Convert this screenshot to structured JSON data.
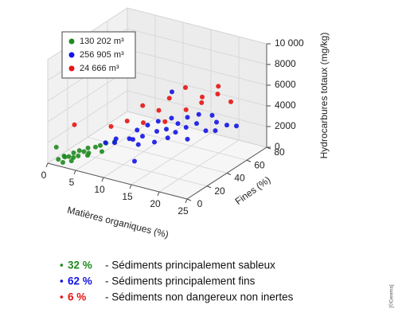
{
  "chart_data": {
    "type": "scatter3d",
    "xlabel": "Matières organiques (%)",
    "ylabel": "Fines (%)",
    "zlabel": "Hydrocarbures totaux (mg/kg)",
    "xlim": [
      0,
      25
    ],
    "xticks": [
      0,
      5,
      10,
      15,
      20,
      25
    ],
    "ylim": [
      0,
      80
    ],
    "yticks": [
      0,
      20,
      40,
      60,
      80
    ],
    "zlim": [
      0,
      10000
    ],
    "zticks": [
      0,
      2000,
      4000,
      6000,
      8000,
      {
        "value": 10000,
        "label": "10 000"
      }
    ],
    "grid": true,
    "series": [
      {
        "name": "130 202 m³",
        "color": "#1f8a1f",
        "x": [
          1,
          1.5,
          2,
          2,
          2.5,
          3,
          3,
          3.5,
          4,
          4,
          4.5,
          5,
          5,
          5.5,
          6,
          6.5,
          7,
          2,
          3,
          1
        ],
        "y": [
          5,
          8,
          10,
          6,
          12,
          9,
          15,
          11,
          14,
          18,
          16,
          20,
          12,
          22,
          25,
          18,
          28,
          4,
          7,
          3
        ],
        "z": [
          200,
          400,
          300,
          500,
          600,
          400,
          700,
          500,
          800,
          900,
          600,
          1000,
          700,
          1100,
          1200,
          900,
          1300,
          100,
          200,
          1500
        ]
      },
      {
        "name": "256 905 m³",
        "color": "#1414e6",
        "x": [
          5,
          6,
          7,
          7.5,
          8,
          8.5,
          9,
          9.5,
          10,
          10,
          11,
          11.5,
          12,
          12,
          13,
          13.5,
          14,
          14,
          15,
          15.5,
          16,
          16.5,
          17,
          18,
          18.5,
          19,
          20,
          21,
          8,
          12
        ],
        "y": [
          30,
          35,
          28,
          40,
          45,
          38,
          50,
          42,
          55,
          35,
          48,
          60,
          52,
          40,
          58,
          45,
          62,
          50,
          55,
          65,
          60,
          48,
          70,
          58,
          66,
          62,
          68,
          72,
          80,
          20
        ],
        "z": [
          800,
          1000,
          1200,
          900,
          1500,
          1100,
          1800,
          1300,
          2000,
          1000,
          1600,
          2200,
          1700,
          1200,
          2000,
          1500,
          2500,
          1800,
          2100,
          2800,
          2300,
          1600,
          2600,
          2000,
          2400,
          1900,
          2200,
          2000,
          3000,
          600
        ]
      },
      {
        "name": "24 666 m³",
        "color": "#e61414",
        "x": [
          3,
          6,
          8,
          9,
          10,
          11,
          12,
          13,
          14,
          15,
          16,
          17,
          18,
          19,
          20
        ],
        "y": [
          10,
          30,
          35,
          45,
          40,
          50,
          55,
          45,
          60,
          55,
          65,
          60,
          70,
          65,
          72
        ],
        "z": [
          3500,
          2500,
          3000,
          4000,
          2800,
          3500,
          4500,
          3000,
          5500,
          3800,
          4000,
          5000,
          4800,
          6000,
          4200
        ]
      }
    ],
    "notes": [
      {
        "share": "32 %",
        "text": "- Sédiments principalement sableux"
      },
      {
        "share": "62 %",
        "text": "- Sédiments principalement fins"
      },
      {
        "share": "6 %",
        "text": "- Sédiments non dangereux non inertes"
      }
    ],
    "credit": "[©Cerema]"
  }
}
